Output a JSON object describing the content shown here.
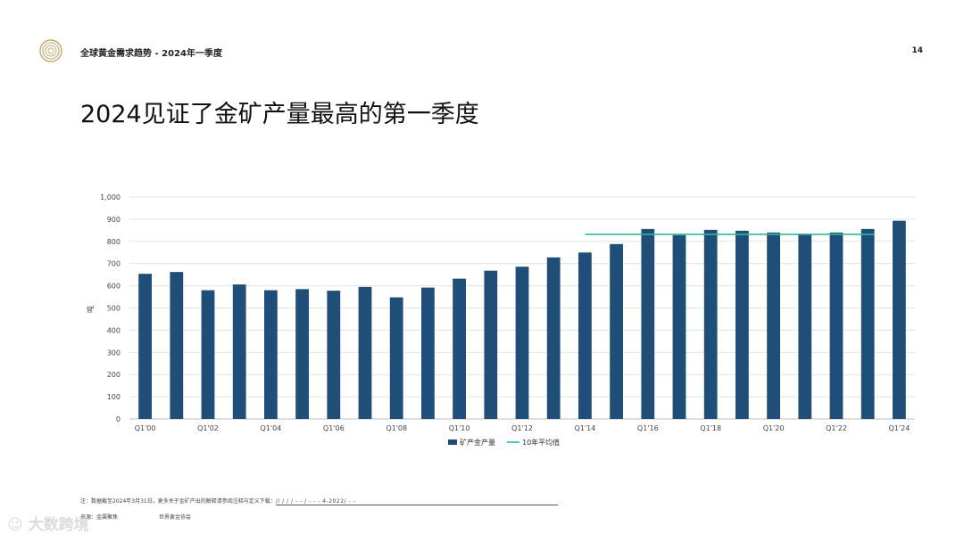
{
  "header": {
    "title": "全球黄金需求趋势 - 2024年一季度",
    "page_number": "14"
  },
  "slide": {
    "title": "2024见证了金矿产量最高的第一季度"
  },
  "chart_data": {
    "type": "bar",
    "ylabel": "吨",
    "ylim": [
      0,
      1000
    ],
    "yticks": [
      "0",
      "100",
      "200",
      "300",
      "400",
      "500",
      "600",
      "700",
      "800",
      "900",
      "1,000"
    ],
    "categories": [
      "Q1'00",
      "Q1'01",
      "Q1'02",
      "Q1'03",
      "Q1'04",
      "Q1'05",
      "Q1'06",
      "Q1'07",
      "Q1'08",
      "Q1'09",
      "Q1'10",
      "Q1'11",
      "Q1'12",
      "Q1'13",
      "Q1'14",
      "Q1'15",
      "Q1'16",
      "Q1'17",
      "Q1'18",
      "Q1'19",
      "Q1'20",
      "Q1'21",
      "Q1'22",
      "Q1'23",
      "Q1'24"
    ],
    "xtick_labels": [
      "Q1'00",
      "",
      "Q1'02",
      "",
      "Q1'04",
      "",
      "Q1'06",
      "",
      "Q1'08",
      "",
      "Q1'10",
      "",
      "Q1'12",
      "",
      "Q1'14",
      "",
      "Q1'16",
      "",
      "Q1'18",
      "",
      "Q1'20",
      "",
      "Q1'22",
      "",
      "Q1'24"
    ],
    "series": [
      {
        "name": "矿产金产量",
        "type": "bar",
        "color": "#1f4e79",
        "values": [
          654,
          662,
          580,
          606,
          580,
          585,
          578,
          595,
          548,
          592,
          632,
          668,
          686,
          728,
          750,
          788,
          856,
          828,
          852,
          848,
          840,
          832,
          840,
          856,
          893
        ]
      },
      {
        "name": "10年平均值",
        "type": "line",
        "color": "#2eb89a",
        "value": 832,
        "x_range": [
          "Q1'14",
          "Q1'23"
        ]
      }
    ],
    "grid": true,
    "legend_position": "bottom-center"
  },
  "footer": {
    "note": "注：数据截至2024年3月31日。更多关于金矿产出的解释请参阅注释与定义下载：",
    "note_link": "   //          /      /      /    -     -      /    -     -    -  4-2022/    -    -",
    "source_label": "来源：金属聚焦",
    "source_org": "世界黄金协会"
  },
  "watermark": {
    "text": "大数跨境"
  }
}
